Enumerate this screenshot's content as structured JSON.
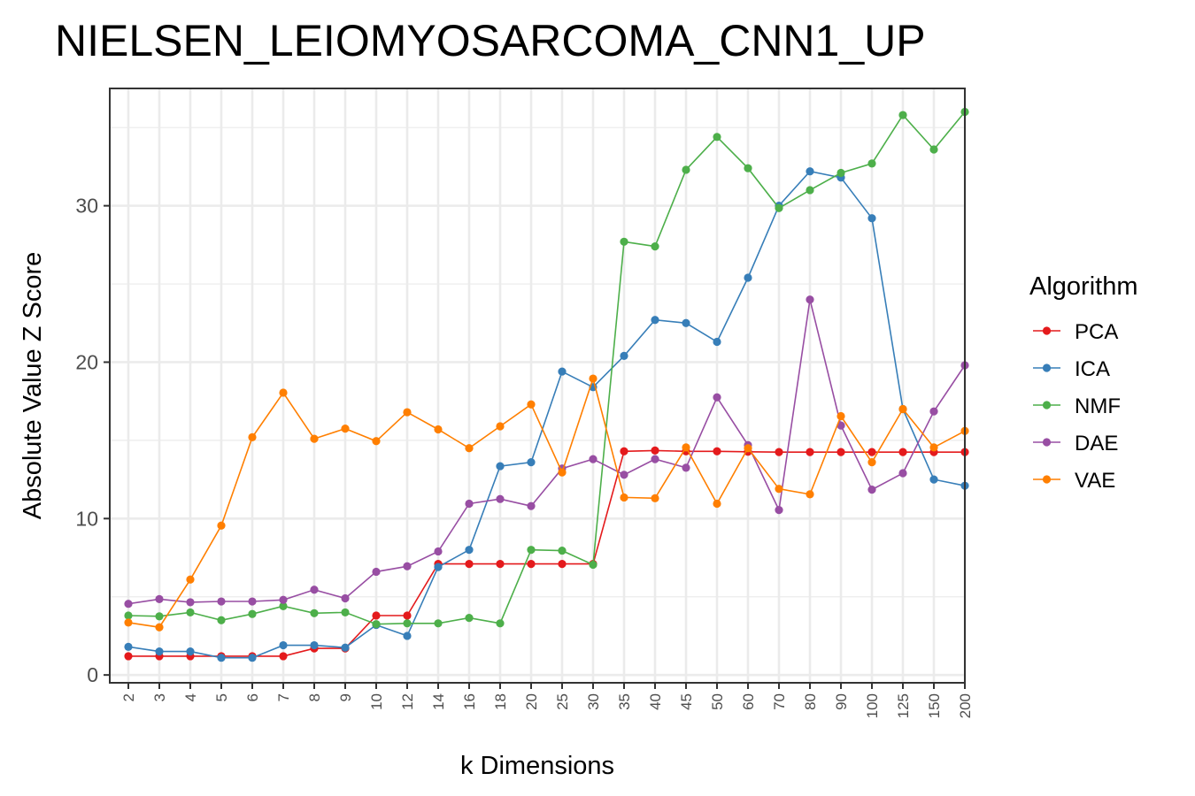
{
  "chart_data": {
    "type": "line",
    "title": "NIELSEN_LEIOMYOSARCOMA_CNN1_UP",
    "xlabel": "k Dimensions",
    "ylabel": "Absolute Value Z Score",
    "x": [
      "2",
      "3",
      "4",
      "5",
      "6",
      "7",
      "8",
      "9",
      "10",
      "12",
      "14",
      "16",
      "18",
      "20",
      "25",
      "30",
      "35",
      "40",
      "45",
      "50",
      "60",
      "70",
      "80",
      "90",
      "100",
      "125",
      "150",
      "200"
    ],
    "yticks": [
      0,
      10,
      20,
      30
    ],
    "ylim": [
      -0.5,
      37.5
    ],
    "grid": true,
    "legend": {
      "title": "Algorithm",
      "placement": "right"
    },
    "series": [
      {
        "name": "PCA",
        "color": "#E41A1C",
        "values": [
          1.2,
          1.2,
          1.2,
          1.2,
          1.2,
          1.2,
          1.7,
          1.7,
          3.8,
          3.8,
          7.1,
          7.1,
          7.1,
          7.1,
          7.1,
          7.1,
          14.3,
          14.35,
          14.3,
          14.3,
          14.27,
          14.25,
          14.25,
          14.25,
          14.25,
          14.25,
          14.25,
          14.25
        ]
      },
      {
        "name": "ICA",
        "color": "#377EB8",
        "values": [
          1.8,
          1.5,
          1.5,
          1.1,
          1.1,
          1.9,
          1.9,
          1.75,
          3.2,
          2.5,
          6.9,
          8.0,
          13.35,
          13.6,
          19.4,
          18.4,
          20.4,
          22.7,
          22.5,
          21.3,
          25.4,
          30.0,
          32.2,
          31.8,
          29.2,
          17.0,
          12.5,
          12.1
        ]
      },
      {
        "name": "NMF",
        "color": "#4DAF4A",
        "values": [
          3.8,
          3.75,
          4.0,
          3.5,
          3.9,
          4.4,
          3.95,
          4.0,
          3.25,
          3.3,
          3.3,
          3.65,
          3.3,
          8.0,
          7.95,
          7.05,
          27.7,
          27.4,
          32.3,
          34.4,
          32.4,
          29.85,
          31.0,
          32.1,
          32.7,
          35.8,
          33.6,
          36.0
        ]
      },
      {
        "name": "DAE",
        "color": "#984EA3",
        "values": [
          4.55,
          4.85,
          4.65,
          4.7,
          4.7,
          4.8,
          5.45,
          4.9,
          6.6,
          6.95,
          7.9,
          10.95,
          11.25,
          10.8,
          13.2,
          13.8,
          12.8,
          13.8,
          13.25,
          17.75,
          14.7,
          10.55,
          24.0,
          15.95,
          11.85,
          12.9,
          16.85,
          19.8
        ]
      },
      {
        "name": "VAE",
        "color": "#FF7F00",
        "values": [
          3.35,
          3.05,
          6.1,
          9.55,
          15.2,
          18.05,
          15.1,
          15.75,
          14.95,
          16.8,
          15.7,
          14.5,
          15.9,
          17.3,
          12.95,
          18.95,
          11.35,
          11.3,
          14.55,
          10.95,
          14.5,
          11.9,
          11.55,
          16.55,
          13.6,
          17.0,
          14.55,
          15.6
        ]
      }
    ]
  }
}
